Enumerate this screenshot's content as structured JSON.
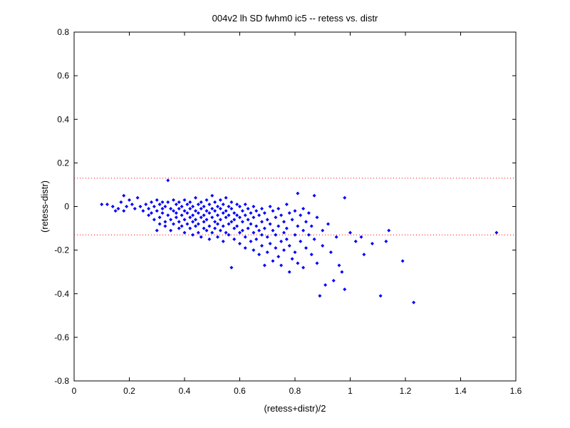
{
  "chart_data": {
    "type": "scatter",
    "title": "004v2 lh SD fwhm0 ic5 -- retess vs. distr",
    "xlabel": "(retess+distr)/2",
    "ylabel": "(retess-distr)",
    "xlim": [
      0,
      1.6
    ],
    "ylim": [
      -0.8,
      0.8
    ],
    "xticks": [
      0,
      0.2,
      0.4,
      0.6,
      0.8,
      1,
      1.2,
      1.4,
      1.6
    ],
    "yticks": [
      -0.8,
      -0.6,
      -0.4,
      -0.2,
      0,
      0.2,
      0.4,
      0.6,
      0.8
    ],
    "xtick_labels": [
      "0",
      "0.2",
      "0.4",
      "0.6",
      "0.8",
      "1",
      "1.2",
      "1.4",
      "1.6"
    ],
    "ytick_labels": [
      "-0.8",
      "-0.6",
      "-0.4",
      "-0.2",
      "0",
      "0.2",
      "0.4",
      "0.6",
      "0.8"
    ],
    "grid": false,
    "colors": {
      "points": "#0000ff",
      "reference_lines": "#ff0000"
    },
    "reference_lines": [
      0.13,
      -0.13
    ],
    "series": [
      {
        "points": [
          [
            0.1,
            0.01
          ],
          [
            0.12,
            0.01
          ],
          [
            0.14,
            0.0
          ],
          [
            0.15,
            -0.02
          ],
          [
            0.16,
            -0.01
          ],
          [
            0.17,
            0.02
          ],
          [
            0.18,
            0.05
          ],
          [
            0.18,
            -0.02
          ],
          [
            0.19,
            0.0
          ],
          [
            0.2,
            0.03
          ],
          [
            0.21,
            0.01
          ],
          [
            0.22,
            -0.01
          ],
          [
            0.23,
            0.04
          ],
          [
            0.24,
            0.0
          ],
          [
            0.25,
            -0.02
          ],
          [
            0.26,
            0.01
          ],
          [
            0.27,
            -0.01
          ],
          [
            0.27,
            -0.04
          ],
          [
            0.28,
            0.02
          ],
          [
            0.28,
            -0.03
          ],
          [
            0.29,
            0.0
          ],
          [
            0.29,
            -0.06
          ],
          [
            0.3,
            0.03
          ],
          [
            0.3,
            -0.02
          ],
          [
            0.3,
            -0.11
          ],
          [
            0.31,
            0.01
          ],
          [
            0.31,
            -0.05
          ],
          [
            0.31,
            -0.08
          ],
          [
            0.32,
            0.02
          ],
          [
            0.32,
            -0.01
          ],
          [
            0.32,
            -0.03
          ],
          [
            0.33,
            0.0
          ],
          [
            0.33,
            -0.07
          ],
          [
            0.33,
            -0.09
          ],
          [
            0.34,
            0.12
          ],
          [
            0.34,
            0.02
          ],
          [
            0.34,
            -0.04
          ],
          [
            0.35,
            -0.01
          ],
          [
            0.35,
            -0.06
          ],
          [
            0.35,
            -0.11
          ],
          [
            0.36,
            0.03
          ],
          [
            0.36,
            -0.02
          ],
          [
            0.36,
            -0.08
          ],
          [
            0.37,
            0.01
          ],
          [
            0.37,
            -0.03
          ],
          [
            0.37,
            -0.05
          ],
          [
            0.38,
            0.02
          ],
          [
            0.38,
            -0.01
          ],
          [
            0.38,
            -0.07
          ],
          [
            0.38,
            -0.1
          ],
          [
            0.39,
            0.0
          ],
          [
            0.39,
            -0.04
          ],
          [
            0.39,
            -0.09
          ],
          [
            0.4,
            0.03
          ],
          [
            0.4,
            -0.02
          ],
          [
            0.4,
            -0.06
          ],
          [
            0.4,
            -0.12
          ],
          [
            0.41,
            0.01
          ],
          [
            0.41,
            -0.03
          ],
          [
            0.41,
            -0.08
          ],
          [
            0.42,
            0.02
          ],
          [
            0.42,
            -0.01
          ],
          [
            0.42,
            -0.05
          ],
          [
            0.42,
            -0.1
          ],
          [
            0.43,
            0.0
          ],
          [
            0.43,
            -0.04
          ],
          [
            0.43,
            -0.07
          ],
          [
            0.43,
            -0.13
          ],
          [
            0.44,
            0.04
          ],
          [
            0.44,
            -0.02
          ],
          [
            0.44,
            -0.06
          ],
          [
            0.44,
            -0.09
          ],
          [
            0.45,
            0.01
          ],
          [
            0.45,
            -0.03
          ],
          [
            0.45,
            -0.08
          ],
          [
            0.45,
            -0.12
          ],
          [
            0.46,
            0.02
          ],
          [
            0.46,
            -0.01
          ],
          [
            0.46,
            -0.05
          ],
          [
            0.46,
            -0.14
          ],
          [
            0.47,
            0.0
          ],
          [
            0.47,
            -0.04
          ],
          [
            0.47,
            -0.07
          ],
          [
            0.47,
            -0.1
          ],
          [
            0.48,
            0.03
          ],
          [
            0.48,
            -0.02
          ],
          [
            0.48,
            -0.06
          ],
          [
            0.48,
            -0.11
          ],
          [
            0.49,
            0.01
          ],
          [
            0.49,
            -0.03
          ],
          [
            0.49,
            -0.09
          ],
          [
            0.49,
            -0.15
          ],
          [
            0.5,
            0.05
          ],
          [
            0.5,
            -0.01
          ],
          [
            0.5,
            -0.05
          ],
          [
            0.5,
            -0.12
          ],
          [
            0.51,
            0.02
          ],
          [
            0.51,
            -0.02
          ],
          [
            0.51,
            -0.07
          ],
          [
            0.51,
            -0.1
          ],
          [
            0.52,
            0.0
          ],
          [
            0.52,
            -0.04
          ],
          [
            0.52,
            -0.08
          ],
          [
            0.52,
            -0.14
          ],
          [
            0.53,
            0.03
          ],
          [
            0.53,
            -0.01
          ],
          [
            0.53,
            -0.06
          ],
          [
            0.53,
            -0.11
          ],
          [
            0.54,
            0.01
          ],
          [
            0.54,
            -0.03
          ],
          [
            0.54,
            -0.09
          ],
          [
            0.54,
            -0.16
          ],
          [
            0.55,
            0.04
          ],
          [
            0.55,
            -0.02
          ],
          [
            0.55,
            -0.05
          ],
          [
            0.55,
            -0.12
          ],
          [
            0.56,
            0.0
          ],
          [
            0.56,
            -0.04
          ],
          [
            0.56,
            -0.08
          ],
          [
            0.56,
            -0.13
          ],
          [
            0.57,
            0.02
          ],
          [
            0.57,
            -0.01
          ],
          [
            0.57,
            -0.07
          ],
          [
            0.57,
            -0.28
          ],
          [
            0.58,
            -0.03
          ],
          [
            0.58,
            -0.06
          ],
          [
            0.58,
            -0.1
          ],
          [
            0.58,
            -0.15
          ],
          [
            0.59,
            0.01
          ],
          [
            0.59,
            -0.04
          ],
          [
            0.59,
            -0.09
          ],
          [
            0.6,
            0.0
          ],
          [
            0.6,
            -0.05
          ],
          [
            0.6,
            -0.12
          ],
          [
            0.6,
            -0.17
          ],
          [
            0.61,
            -0.02
          ],
          [
            0.61,
            -0.07
          ],
          [
            0.61,
            -0.11
          ],
          [
            0.62,
            0.01
          ],
          [
            0.62,
            -0.04
          ],
          [
            0.62,
            -0.14
          ],
          [
            0.62,
            -0.19
          ],
          [
            0.63,
            -0.01
          ],
          [
            0.63,
            -0.06
          ],
          [
            0.63,
            -0.1
          ],
          [
            0.64,
            -0.03
          ],
          [
            0.64,
            -0.08
          ],
          [
            0.64,
            -0.16
          ],
          [
            0.65,
            0.0
          ],
          [
            0.65,
            -0.05
          ],
          [
            0.65,
            -0.12
          ],
          [
            0.65,
            -0.2
          ],
          [
            0.66,
            -0.02
          ],
          [
            0.66,
            -0.09
          ],
          [
            0.66,
            -0.15
          ],
          [
            0.67,
            -0.04
          ],
          [
            0.67,
            -0.11
          ],
          [
            0.67,
            -0.22
          ],
          [
            0.68,
            -0.01
          ],
          [
            0.68,
            -0.07
          ],
          [
            0.68,
            -0.13
          ],
          [
            0.68,
            -0.18
          ],
          [
            0.69,
            -0.03
          ],
          [
            0.69,
            -0.1
          ],
          [
            0.69,
            -0.27
          ],
          [
            0.7,
            -0.06
          ],
          [
            0.7,
            -0.14
          ],
          [
            0.7,
            -0.21
          ],
          [
            0.71,
            0.0
          ],
          [
            0.71,
            -0.08
          ],
          [
            0.71,
            -0.17
          ],
          [
            0.72,
            -0.02
          ],
          [
            0.72,
            -0.11
          ],
          [
            0.72,
            -0.25
          ],
          [
            0.73,
            -0.05
          ],
          [
            0.73,
            -0.13
          ],
          [
            0.73,
            -0.19
          ],
          [
            0.74,
            -0.01
          ],
          [
            0.74,
            -0.09
          ],
          [
            0.74,
            -0.23
          ],
          [
            0.75,
            -0.04
          ],
          [
            0.75,
            -0.16
          ],
          [
            0.75,
            -0.27
          ],
          [
            0.76,
            -0.07
          ],
          [
            0.76,
            -0.12
          ],
          [
            0.76,
            -0.2
          ],
          [
            0.77,
            0.01
          ],
          [
            0.77,
            -0.1
          ],
          [
            0.77,
            -0.15
          ],
          [
            0.78,
            -0.03
          ],
          [
            0.78,
            -0.18
          ],
          [
            0.78,
            -0.3
          ],
          [
            0.79,
            -0.06
          ],
          [
            0.79,
            -0.24
          ],
          [
            0.8,
            -0.02
          ],
          [
            0.8,
            -0.13
          ],
          [
            0.8,
            -0.21
          ],
          [
            0.81,
            0.06
          ],
          [
            0.81,
            -0.09
          ],
          [
            0.81,
            -0.26
          ],
          [
            0.82,
            -0.04
          ],
          [
            0.82,
            -0.16
          ],
          [
            0.83,
            -0.01
          ],
          [
            0.83,
            -0.11
          ],
          [
            0.83,
            -0.28
          ],
          [
            0.84,
            -0.07
          ],
          [
            0.84,
            -0.19
          ],
          [
            0.85,
            -0.03
          ],
          [
            0.85,
            -0.13
          ],
          [
            0.86,
            -0.09
          ],
          [
            0.86,
            -0.22
          ],
          [
            0.87,
            0.05
          ],
          [
            0.87,
            -0.15
          ],
          [
            0.88,
            -0.05
          ],
          [
            0.88,
            -0.26
          ],
          [
            0.89,
            -0.41
          ],
          [
            0.9,
            -0.11
          ],
          [
            0.9,
            -0.18
          ],
          [
            0.91,
            -0.36
          ],
          [
            0.92,
            -0.08
          ],
          [
            0.93,
            -0.21
          ],
          [
            0.94,
            -0.34
          ],
          [
            0.95,
            -0.14
          ],
          [
            0.96,
            -0.27
          ],
          [
            0.97,
            -0.3
          ],
          [
            0.98,
            0.04
          ],
          [
            0.98,
            -0.38
          ],
          [
            1.0,
            -0.12
          ],
          [
            1.02,
            -0.16
          ],
          [
            1.04,
            -0.14
          ],
          [
            1.05,
            -0.22
          ],
          [
            1.08,
            -0.17
          ],
          [
            1.11,
            -0.41
          ],
          [
            1.13,
            -0.16
          ],
          [
            1.14,
            -0.11
          ],
          [
            1.19,
            -0.25
          ],
          [
            1.23,
            -0.44
          ],
          [
            1.53,
            -0.12
          ]
        ]
      }
    ]
  }
}
